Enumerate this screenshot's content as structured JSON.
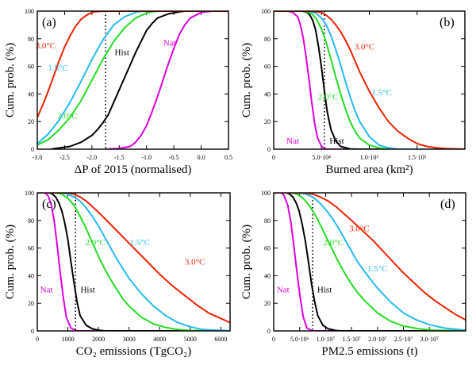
{
  "colors": {
    "Nat": "#dd00dd",
    "Hist": "#000000",
    "1.5C": "#22bbee",
    "2.0C": "#22dd22",
    "3.0C": "#ee2200"
  },
  "chart_data": [
    {
      "type": "line",
      "panel_label": "(a)",
      "xlabel": "ΔP of 2015 (normalised)",
      "ylabel": "Cum. prob. (%)",
      "xlim": [
        -3.0,
        0.5
      ],
      "ylim": [
        0,
        100
      ],
      "x_ticks": [
        -3.0,
        -2.5,
        -2.0,
        -1.5,
        -1.0,
        -0.5,
        0.0,
        0.5
      ],
      "x_tick_labels": [
        "-3.0",
        "-2.5",
        "-2.0",
        "-1.5",
        "-1.0",
        "-0.5",
        "0.0",
        "0.5"
      ],
      "y_ticks": [
        0,
        20,
        40,
        60,
        80,
        100
      ],
      "y_tick_labels": [
        "0",
        "20",
        "40",
        "60",
        "80",
        "100"
      ],
      "dotted_line_x": -1.75,
      "series": [
        {
          "name": "Nat",
          "color_key": "Nat",
          "label_at": [
            -0.58,
            75
          ],
          "x": [
            -1.75,
            -1.5,
            -1.3,
            -1.2,
            -1.1,
            -1.0,
            -0.9,
            -0.8,
            -0.7,
            -0.6,
            -0.5,
            -0.4,
            -0.3,
            -0.2,
            0.0,
            0.2,
            0.5
          ],
          "y": [
            0,
            0.5,
            2,
            5,
            10,
            17,
            27,
            38,
            50,
            62,
            73,
            83,
            90,
            95,
            99,
            100,
            100
          ]
        },
        {
          "name": "Hist",
          "color_key": "Hist",
          "label_at": [
            -1.45,
            68
          ],
          "x": [
            -2.75,
            -2.4,
            -2.2,
            -2.0,
            -1.9,
            -1.8,
            -1.7,
            -1.6,
            -1.5,
            -1.4,
            -1.3,
            -1.2,
            -1.1,
            -1.0,
            -0.9,
            -0.8,
            -0.6,
            -0.4,
            -0.3,
            0.0,
            0.5
          ],
          "y": [
            0,
            2,
            5,
            10,
            14,
            19,
            25,
            34,
            43,
            52,
            61,
            70,
            78,
            86,
            91,
            95,
            98,
            99.5,
            100,
            100,
            100
          ]
        },
        {
          "name": "2.0°C",
          "color_key": "2.0C",
          "label_at": [
            -2.45,
            22
          ],
          "x": [
            -3.0,
            -2.8,
            -2.6,
            -2.4,
            -2.2,
            -2.0,
            -1.8,
            -1.6,
            -1.4,
            -1.2,
            -1.0,
            -0.9,
            -0.8,
            -0.6,
            0.5
          ],
          "y": [
            3,
            7,
            14,
            23,
            35,
            50,
            65,
            78,
            88,
            95,
            98.5,
            99.5,
            100,
            100,
            100
          ]
        },
        {
          "name": "1.5°C",
          "color_key": "1.5C",
          "label_at": [
            -2.62,
            57
          ],
          "x": [
            -3.0,
            -2.8,
            -2.6,
            -2.4,
            -2.2,
            -2.0,
            -1.8,
            -1.6,
            -1.4,
            -1.2,
            -1.1,
            -1.0,
            -0.9,
            0.5
          ],
          "y": [
            4,
            11,
            21,
            34,
            49,
            65,
            79,
            90,
            96,
            99,
            99.8,
            100,
            100,
            100
          ]
        },
        {
          "name": "3.0°C",
          "color_key": "3.0C",
          "label_at": [
            -2.85,
            73
          ],
          "x": [
            -3.0,
            -2.9,
            -2.8,
            -2.7,
            -2.6,
            -2.5,
            -2.4,
            -2.3,
            -2.2,
            -2.1,
            -2.0,
            -1.9,
            -1.8,
            -1.6,
            0.5
          ],
          "y": [
            23,
            32,
            42,
            53,
            64,
            74,
            82,
            89,
            94,
            97,
            99,
            99.7,
            100,
            100,
            100
          ]
        }
      ]
    },
    {
      "type": "line",
      "panel_label": "(b)",
      "xlabel": "Burned area (km²)",
      "ylabel": "Cum. prob. (%)",
      "xlim": [
        0,
        200000
      ],
      "ylim": [
        0,
        100
      ],
      "x_ticks": [
        0,
        50000,
        100000,
        150000
      ],
      "x_tick_labels": [
        "0",
        "5.0·10⁴",
        "1.0·10⁵",
        "1.5·10⁵"
      ],
      "y_ticks": [
        0,
        20,
        40,
        60,
        80,
        100
      ],
      "y_tick_labels": [
        "0",
        "20",
        "40",
        "60",
        "80",
        "100"
      ],
      "dotted_line_x": 53000,
      "series": [
        {
          "name": "Nat",
          "color_key": "Nat",
          "label_at": [
            20000,
            4
          ],
          "x": [
            0,
            15000,
            20000,
            25000,
            28000,
            31000,
            34000,
            37000,
            40000,
            43000,
            46000,
            50000,
            55000,
            200000
          ],
          "y": [
            100,
            100,
            99,
            96,
            90,
            80,
            66,
            50,
            33,
            18,
            8,
            2,
            0,
            0
          ]
        },
        {
          "name": "Hist",
          "color_key": "Hist",
          "label_at": [
            66000,
            4
          ],
          "x": [
            0,
            30000,
            35000,
            38000,
            41000,
            44000,
            47000,
            50000,
            53000,
            56000,
            60000,
            65000,
            70000,
            80000,
            90000,
            200000
          ],
          "y": [
            100,
            100,
            99,
            97,
            93,
            86,
            74,
            59,
            42,
            27,
            14,
            6,
            2,
            0.2,
            0,
            0
          ]
        },
        {
          "name": "2.0°C",
          "color_key": "2.0C",
          "label_at": [
            57000,
            36
          ],
          "x": [
            0,
            30000,
            35000,
            40000,
            45000,
            50000,
            55000,
            60000,
            65000,
            70000,
            75000,
            80000,
            85000,
            90000,
            100000,
            110000,
            120000,
            200000
          ],
          "y": [
            100,
            100,
            99.5,
            98,
            94,
            87,
            77,
            65,
            52,
            40,
            29,
            20,
            13,
            8,
            3,
            1,
            0,
            0
          ]
        },
        {
          "name": "1.5°C",
          "color_key": "1.5C",
          "label_at": [
            113000,
            39
          ],
          "x": [
            0,
            35000,
            40000,
            45000,
            50000,
            55000,
            60000,
            65000,
            70000,
            75000,
            80000,
            85000,
            90000,
            100000,
            110000,
            120000,
            130000,
            200000
          ],
          "y": [
            100,
            100,
            99.5,
            98,
            95,
            90,
            82,
            72,
            61,
            49,
            38,
            28,
            20,
            9,
            3,
            1,
            0,
            0
          ]
        },
        {
          "name": "3.0°C",
          "color_key": "3.0C",
          "label_at": [
            95000,
            72
          ],
          "x": [
            0,
            40000,
            50000,
            55000,
            60000,
            65000,
            70000,
            75000,
            80000,
            85000,
            90000,
            100000,
            110000,
            120000,
            130000,
            140000,
            150000,
            160000,
            170000,
            180000,
            200000
          ],
          "y": [
            100,
            100,
            99,
            97,
            94,
            90,
            85,
            79,
            72,
            64,
            56,
            42,
            30,
            20,
            13,
            8,
            4,
            2,
            1,
            0.4,
            0
          ]
        }
      ]
    },
    {
      "type": "line",
      "panel_label": "(c)",
      "xlabel": "CO₂ emissions (TgCO₂)",
      "ylabel": "Cum. prob. (%)",
      "xlim": [
        0,
        6300
      ],
      "ylim": [
        0,
        100
      ],
      "x_ticks": [
        0,
        1000,
        2000,
        3000,
        4000,
        5000,
        6000
      ],
      "x_tick_labels": [
        "0",
        "1000",
        "2000",
        "3000",
        "4000",
        "5000",
        "6000"
      ],
      "y_ticks": [
        0,
        20,
        40,
        60,
        80,
        100
      ],
      "y_tick_labels": [
        "0",
        "20",
        "40",
        "60",
        "80",
        "100"
      ],
      "dotted_line_x": 1250,
      "series": [
        {
          "name": "Nat",
          "color_key": "Nat",
          "label_at": [
            300,
            28
          ],
          "x": [
            0,
            250,
            350,
            450,
            550,
            650,
            750,
            850,
            950,
            1100,
            1300,
            6300
          ],
          "y": [
            100,
            100,
            98,
            92,
            80,
            62,
            42,
            24,
            10,
            2,
            0,
            0
          ]
        },
        {
          "name": "Hist",
          "color_key": "Hist",
          "label_at": [
            1650,
            28
          ],
          "x": [
            0,
            400,
            500,
            600,
            700,
            800,
            900,
            1000,
            1100,
            1200,
            1300,
            1400,
            1600,
            1800,
            2000,
            2200,
            6300
          ],
          "y": [
            100,
            100,
            99,
            97,
            93,
            87,
            78,
            66,
            50,
            35,
            21,
            11,
            4,
            1.5,
            0.5,
            0,
            0
          ]
        },
        {
          "name": "2.0°C",
          "color_key": "2.0C",
          "label_at": [
            1900,
            62
          ],
          "x": [
            0,
            600,
            800,
            1000,
            1200,
            1400,
            1600,
            1800,
            2000,
            2200,
            2400,
            2600,
            2800,
            3000,
            3400,
            3800,
            4200,
            4600,
            5000,
            6300
          ],
          "y": [
            100,
            100,
            99,
            96,
            91,
            83,
            74,
            64,
            54,
            45,
            37,
            30,
            23,
            18,
            10,
            5,
            2.5,
            1,
            0.3,
            0
          ]
        },
        {
          "name": "1.5°C",
          "color_key": "1.5C",
          "label_at": [
            3350,
            62
          ],
          "x": [
            0,
            800,
            1000,
            1200,
            1400,
            1600,
            1800,
            2000,
            2200,
            2400,
            2600,
            2800,
            3000,
            3400,
            3800,
            4200,
            4600,
            5000,
            5400,
            6300
          ],
          "y": [
            100,
            100,
            99,
            97,
            94,
            89,
            83,
            76,
            68,
            60,
            52,
            45,
            38,
            27,
            18,
            11,
            6,
            3,
            1,
            0
          ]
        },
        {
          "name": "3.0°C",
          "color_key": "3.0C",
          "label_at": [
            5150,
            48
          ],
          "x": [
            0,
            1000,
            1200,
            1400,
            1600,
            1800,
            2000,
            2400,
            2800,
            3200,
            3600,
            4000,
            4400,
            4800,
            5200,
            5600,
            6000,
            6300
          ],
          "y": [
            100,
            100,
            99,
            97,
            94,
            90,
            86,
            77,
            68,
            59,
            50,
            41,
            33,
            26,
            19,
            13,
            9,
            6
          ]
        }
      ]
    },
    {
      "type": "line",
      "panel_label": "(d)",
      "xlabel": "PM2.5 emissions (t)",
      "ylabel": "Cum. prob. (%)",
      "xlim": [
        0,
        37000000
      ],
      "ylim": [
        0,
        100
      ],
      "x_ticks": [
        0,
        5000000,
        10000000,
        15000000,
        20000000,
        25000000,
        30000000
      ],
      "x_tick_labels": [
        "0",
        "5.0·10⁶",
        "1.0·10⁷",
        "1.5·10⁷",
        "2.0·10⁷",
        "2.5·10⁷",
        "3.0·10⁷"
      ],
      "y_ticks": [
        0,
        20,
        40,
        60,
        80,
        100
      ],
      "y_tick_labels": [
        "0",
        "20",
        "40",
        "60",
        "80",
        "100"
      ],
      "dotted_line_x": 7500000,
      "series": [
        {
          "name": "Nat",
          "color_key": "Nat",
          "label_at": [
            1800000,
            28
          ],
          "x": [
            0,
            1500000,
            2000000,
            2700000,
            3300000,
            3900000,
            4500000,
            5100000,
            5700000,
            6400000,
            7500000,
            37000000
          ],
          "y": [
            100,
            100,
            98,
            91,
            79,
            61,
            42,
            24,
            10,
            2,
            0,
            0
          ]
        },
        {
          "name": "Hist",
          "color_key": "Hist",
          "label_at": [
            9800000,
            28
          ],
          "x": [
            0,
            2500000,
            3100000,
            3700000,
            4300000,
            4900000,
            5500000,
            6100000,
            6700000,
            7300000,
            7900000,
            8500000,
            9500000,
            10500000,
            12000000,
            13000000,
            37000000
          ],
          "y": [
            100,
            100,
            99,
            97,
            93,
            87,
            77,
            65,
            50,
            34,
            21,
            11,
            4,
            1.5,
            0.3,
            0,
            0
          ]
        },
        {
          "name": "2.0°C",
          "color_key": "2.0C",
          "label_at": [
            11500000,
            62
          ],
          "x": [
            0,
            3500000,
            4500000,
            5700000,
            7000000,
            8300000,
            9600000,
            10900000,
            12200000,
            13500000,
            14800000,
            16100000,
            17500000,
            20000000,
            22500000,
            25000000,
            28000000,
            31000000,
            37000000
          ],
          "y": [
            100,
            100,
            99,
            96,
            90,
            82,
            72,
            62,
            52,
            43,
            35,
            28,
            22,
            13,
            7,
            3.5,
            1.5,
            0.5,
            0
          ]
        },
        {
          "name": "1.5°C",
          "color_key": "1.5C",
          "label_at": [
            20000000,
            43
          ],
          "x": [
            0,
            5000000,
            6200000,
            7500000,
            8800000,
            10000000,
            11200000,
            12400000,
            13600000,
            14800000,
            16000000,
            17500000,
            20000000,
            22500000,
            25000000,
            27500000,
            30000000,
            33000000,
            37000000
          ],
          "y": [
            100,
            100,
            99,
            97,
            93,
            88,
            82,
            75,
            67,
            59,
            51,
            43,
            31,
            21,
            13,
            8,
            4.5,
            2,
            0.5
          ]
        },
        {
          "name": "3.0°C",
          "color_key": "3.0C",
          "label_at": [
            16500000,
            72
          ],
          "x": [
            0,
            6000000,
            7500000,
            9000000,
            10500000,
            12000000,
            13500000,
            15000000,
            17000000,
            19000000,
            21000000,
            23000000,
            25000000,
            27000000,
            29000000,
            31000000,
            33000000,
            35000000,
            37000000
          ],
          "y": [
            100,
            100,
            99,
            97,
            94,
            90,
            85,
            80,
            73,
            66,
            58,
            50,
            42,
            35,
            28,
            22,
            17,
            12,
            8
          ]
        }
      ]
    }
  ]
}
